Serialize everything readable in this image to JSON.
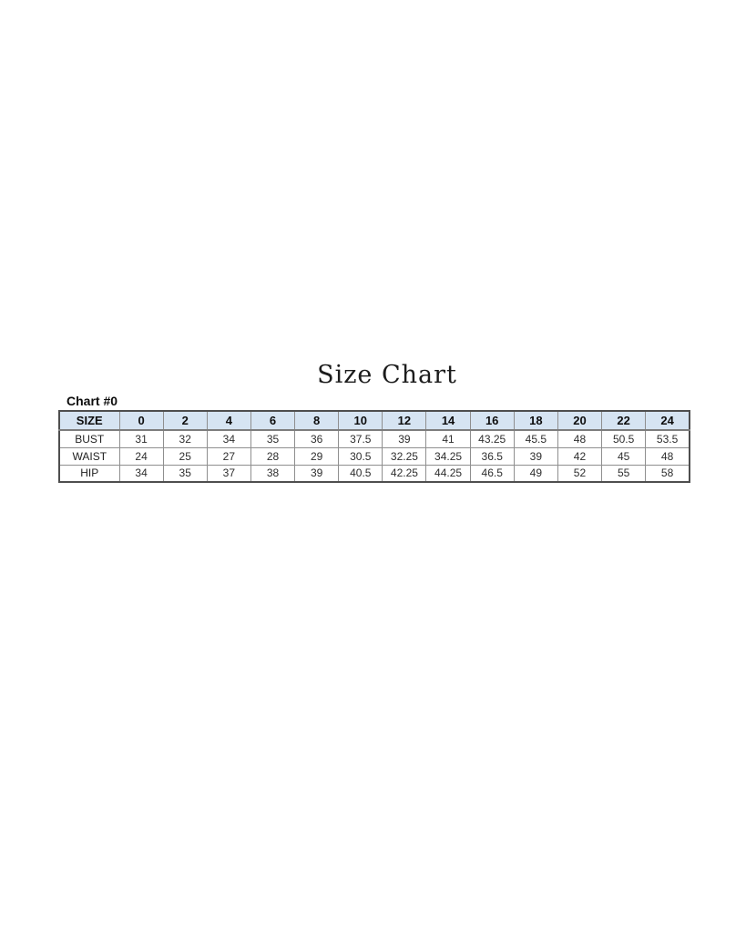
{
  "page": {
    "title": "Size Chart",
    "chart_label": "Chart #0"
  },
  "colors": {
    "page_background": "#ffffff",
    "header_background": "#d6e4f2",
    "outer_border": "#4e4e4e",
    "inner_border": "#8f8f8f",
    "text": "#1a1a1a"
  },
  "chart_data": {
    "type": "table",
    "title": "Size Chart",
    "label": "Chart #0",
    "columns": [
      "SIZE",
      "0",
      "2",
      "4",
      "6",
      "8",
      "10",
      "12",
      "14",
      "16",
      "18",
      "20",
      "22",
      "24"
    ],
    "rows": [
      {
        "label": "BUST",
        "values": [
          "31",
          "32",
          "34",
          "35",
          "36",
          "37.5",
          "39",
          "41",
          "43.25",
          "45.5",
          "48",
          "50.5",
          "53.5"
        ]
      },
      {
        "label": "WAIST",
        "values": [
          "24",
          "25",
          "27",
          "28",
          "29",
          "30.5",
          "32.25",
          "34.25",
          "36.5",
          "39",
          "42",
          "45",
          "48"
        ]
      },
      {
        "label": "HIP",
        "values": [
          "34",
          "35",
          "37",
          "38",
          "39",
          "40.5",
          "42.25",
          "44.25",
          "46.5",
          "49",
          "52",
          "55",
          "58"
        ]
      }
    ]
  }
}
